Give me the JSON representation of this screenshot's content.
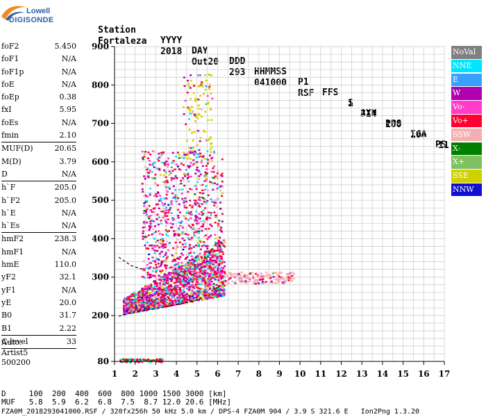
{
  "logo": {
    "line1": "Lowell",
    "line2": "DIGISONDE"
  },
  "header": {
    "row1": [
      "Station",
      "YYYY",
      "DAY",
      "DDD",
      "HHMMSS",
      "P1",
      "FFS",
      "S",
      "AXN",
      "PPS",
      "IGA",
      "PS"
    ],
    "row2": [
      "Fortaleza",
      "2018",
      "Out20",
      "293",
      "041000",
      "RSF",
      "1",
      "714",
      "100",
      "10+",
      "11"
    ]
  },
  "params": [
    {
      "name": "foF2",
      "value": "5.450"
    },
    {
      "name": "foF1",
      "value": "N/A"
    },
    {
      "name": "foF1p",
      "value": "N/A"
    },
    {
      "name": "foE",
      "value": "N/A"
    },
    {
      "name": "foEp",
      "value": "0.38"
    },
    {
      "name": "fxI",
      "value": "5.95"
    },
    {
      "name": "foEs",
      "value": "N/A"
    },
    {
      "name": "fmin",
      "value": "2.10",
      "divider": true
    },
    {
      "name": "MUF(D)",
      "value": "20.65"
    },
    {
      "name": "M(D)",
      "value": "3.79"
    },
    {
      "name": "D",
      "value": "N/A",
      "divider": true
    },
    {
      "name": "h`F",
      "value": "205.0"
    },
    {
      "name": "h`F2",
      "value": "205.0"
    },
    {
      "name": "h`E",
      "value": "N/A"
    },
    {
      "name": "h`Es",
      "value": "N/A",
      "divider": true
    },
    {
      "name": "hmF2",
      "value": "238.3"
    },
    {
      "name": "hmF1",
      "value": "N/A"
    },
    {
      "name": "hmE",
      "value": "110.0"
    },
    {
      "name": "yF2",
      "value": "32.1"
    },
    {
      "name": "yF1",
      "value": "N/A"
    },
    {
      "name": "yE",
      "value": "20.0"
    },
    {
      "name": "B0",
      "value": "31.7"
    },
    {
      "name": "B1",
      "value": "2.22",
      "divider": true
    },
    {
      "name": "C-level",
      "value": "33",
      "divider": true
    }
  ],
  "auto": {
    "line1": "Auto:",
    "line2": "Artist5",
    "line3": "500200"
  },
  "legend": [
    {
      "label": "NoVal",
      "color": "#808080"
    },
    {
      "label": "NNE",
      "color": "#00e5ff"
    },
    {
      "label": "E",
      "color": "#3aa0ff"
    },
    {
      "label": "W",
      "color": "#b000b0"
    },
    {
      "label": "Vo-",
      "color": "#ff3cc8"
    },
    {
      "label": "Vo+",
      "color": "#ff0033"
    },
    {
      "label": "SSW",
      "color": "#f4b0b0"
    },
    {
      "label": "X-",
      "color": "#008000"
    },
    {
      "label": "X+",
      "color": "#80c060"
    },
    {
      "label": "SSE",
      "color": "#d0d000"
    },
    {
      "label": "NNW",
      "color": "#1010d0"
    }
  ],
  "chart_data": {
    "type": "scatter",
    "x_ticks": [
      "1",
      "2",
      "3",
      "4",
      "5",
      "6",
      "7",
      "8",
      "9",
      "10",
      "11",
      "12",
      "13",
      "14",
      "15",
      "16",
      "17"
    ],
    "y_ticks": [
      "80",
      "200",
      "300",
      "400",
      "500",
      "600",
      "700",
      "800",
      "900"
    ],
    "xlim": [
      1,
      17
    ],
    "ylim": [
      80,
      900
    ],
    "grid": true
  },
  "footer": {
    "line_d": "D     100  200  400  600  800 1000 1500 3000 [km]",
    "line_muf": "MUF   5.8  5.9  6.2  6.8  7.5  8.7 12.0 20.6 [MHz]",
    "line_info": "FZA0M_2018293041000.RSF / 320fx256h 50 kHz 5.0 km / DPS-4 FZA0M 904 / 3.9 S 321.6 E   Ion2Png 1.3.20"
  }
}
